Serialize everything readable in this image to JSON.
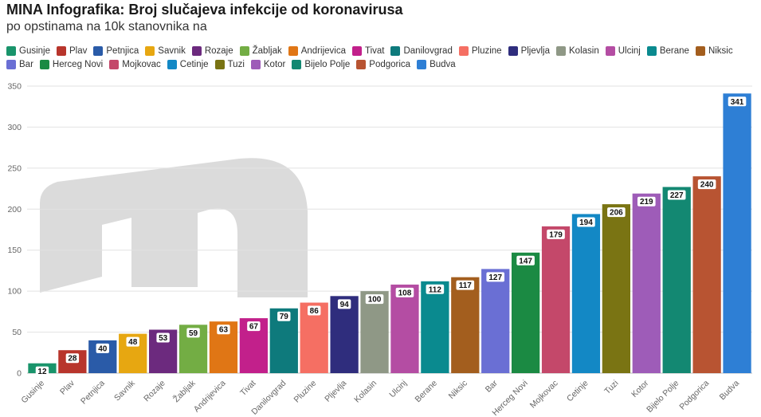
{
  "title": "MINA Infografika: Broj slučajeva infekcije od koronavirusa",
  "subtitle": "po opstinama na 10k stanovnika na",
  "chart_data": {
    "type": "bar",
    "title": "MINA Infografika: Broj slučajeva infekcije od koronavirusa",
    "subtitle": "po opstinama na 10k stanovnika na",
    "xlabel": "",
    "ylabel": "",
    "ylim": [
      0,
      350
    ],
    "yticks": [
      0,
      50,
      100,
      150,
      200,
      250,
      300,
      350
    ],
    "grid": true,
    "legend_position": "top",
    "categories": [
      "Gusinje",
      "Plav",
      "Petnjica",
      "Savnik",
      "Rozaje",
      "Žabljak",
      "Andrijevica",
      "Tivat",
      "Danilovgrad",
      "Pluzine",
      "Pljevlja",
      "Kolasin",
      "Ulcinj",
      "Berane",
      "Niksic",
      "Bar",
      "Herceg Novi",
      "Mojkovac",
      "Cetinje",
      "Tuzi",
      "Kotor",
      "Bijelo Polje",
      "Podgorica",
      "Budva"
    ],
    "values": [
      12,
      28,
      40,
      48,
      53,
      59,
      63,
      67,
      79,
      86,
      94,
      100,
      108,
      112,
      117,
      127,
      147,
      179,
      194,
      206,
      219,
      227,
      240,
      341
    ],
    "colors": [
      "#19946b",
      "#b8352c",
      "#2a5ba8",
      "#e7a711",
      "#6c2a7e",
      "#73ad44",
      "#e07615",
      "#c2208b",
      "#0e7a7c",
      "#f56f63",
      "#2f2d7d",
      "#8f9886",
      "#b44da3",
      "#0a8a8f",
      "#a35e1e",
      "#6a6fd4",
      "#1b8a43",
      "#c4486a",
      "#1388c5",
      "#7a7413",
      "#9e5cb8",
      "#138872",
      "#b85432",
      "#2e7fd5"
    ]
  }
}
